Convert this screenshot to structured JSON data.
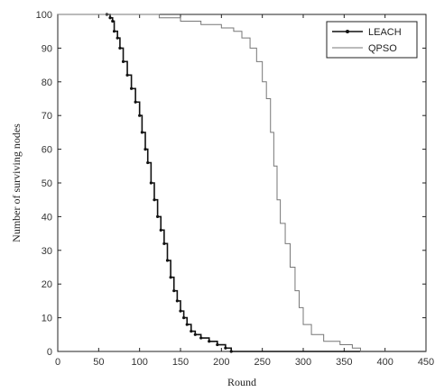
{
  "chart_data": {
    "type": "line",
    "xlabel": "Round",
    "ylabel": "Number of surviving nodes",
    "xlim": [
      0,
      450
    ],
    "ylim": [
      0,
      100
    ],
    "xticks": [
      0,
      50,
      100,
      150,
      200,
      250,
      300,
      350,
      400,
      450
    ],
    "yticks": [
      0,
      10,
      20,
      30,
      40,
      50,
      60,
      70,
      80,
      90,
      100
    ],
    "grid": false,
    "legend_position": "top-right",
    "series": [
      {
        "name": "LEACH",
        "color": "#111111",
        "marker": "dot",
        "points": [
          [
            60,
            100
          ],
          [
            64,
            99
          ],
          [
            67,
            98
          ],
          [
            69,
            95
          ],
          [
            73,
            93
          ],
          [
            76,
            90
          ],
          [
            80,
            86
          ],
          [
            85,
            82
          ],
          [
            90,
            78
          ],
          [
            95,
            74
          ],
          [
            100,
            70
          ],
          [
            103,
            65
          ],
          [
            107,
            60
          ],
          [
            110,
            56
          ],
          [
            114,
            50
          ],
          [
            118,
            45
          ],
          [
            122,
            40
          ],
          [
            126,
            36
          ],
          [
            130,
            32
          ],
          [
            134,
            27
          ],
          [
            138,
            22
          ],
          [
            142,
            18
          ],
          [
            146,
            15
          ],
          [
            150,
            12
          ],
          [
            154,
            10
          ],
          [
            158,
            8
          ],
          [
            163,
            6
          ],
          [
            168,
            5
          ],
          [
            175,
            4
          ],
          [
            185,
            3
          ],
          [
            195,
            2
          ],
          [
            205,
            1
          ],
          [
            212,
            0
          ],
          [
            450,
            0
          ]
        ]
      },
      {
        "name": "QPSO",
        "color": "#777777",
        "marker": "none",
        "points": [
          [
            0,
            100
          ],
          [
            115,
            100
          ],
          [
            124,
            99
          ],
          [
            150,
            98
          ],
          [
            175,
            97
          ],
          [
            200,
            96
          ],
          [
            215,
            95
          ],
          [
            225,
            93
          ],
          [
            235,
            90
          ],
          [
            243,
            86
          ],
          [
            250,
            80
          ],
          [
            255,
            75
          ],
          [
            260,
            65
          ],
          [
            264,
            55
          ],
          [
            268,
            45
          ],
          [
            272,
            38
          ],
          [
            278,
            32
          ],
          [
            284,
            25
          ],
          [
            290,
            18
          ],
          [
            295,
            13
          ],
          [
            300,
            8
          ],
          [
            310,
            5
          ],
          [
            325,
            3
          ],
          [
            345,
            2
          ],
          [
            360,
            1
          ],
          [
            370,
            0
          ],
          [
            450,
            0
          ]
        ]
      }
    ]
  }
}
